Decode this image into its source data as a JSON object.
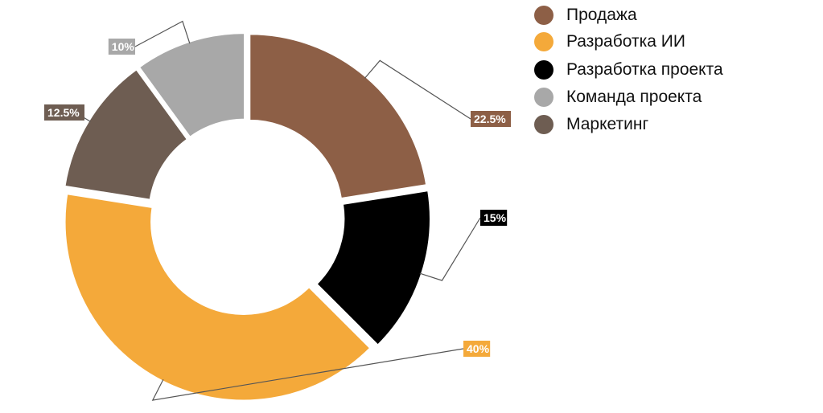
{
  "chart_data": {
    "type": "pie",
    "donut": true,
    "slices": [
      {
        "name": "Продажа",
        "value": 22.5,
        "label": "22.5%",
        "color": "#8d5f46"
      },
      {
        "name": "Разработка проекта",
        "value": 15,
        "label": "15%",
        "color": "#000000"
      },
      {
        "name": "Разработка ИИ",
        "value": 40,
        "label": "40%",
        "color": "#f4a93a"
      },
      {
        "name": "Маркетинг",
        "value": 12.5,
        "label": "12.5%",
        "color": "#6e5d52"
      },
      {
        "name": "Команда проекта",
        "value": 10,
        "label": "10%",
        "color": "#a8a8a8"
      }
    ],
    "legend": {
      "placement": "top-right",
      "entries": [
        {
          "label": "Продажа",
          "color": "#8d5f46"
        },
        {
          "label": "Разработка ИИ",
          "color": "#f4a93a"
        },
        {
          "label": "Разработка проекта",
          "color": "#000000"
        },
        {
          "label": "Команда проекта",
          "color": "#a8a8a8"
        },
        {
          "label": "Маркетинг",
          "color": "#6e5d52"
        }
      ]
    }
  }
}
